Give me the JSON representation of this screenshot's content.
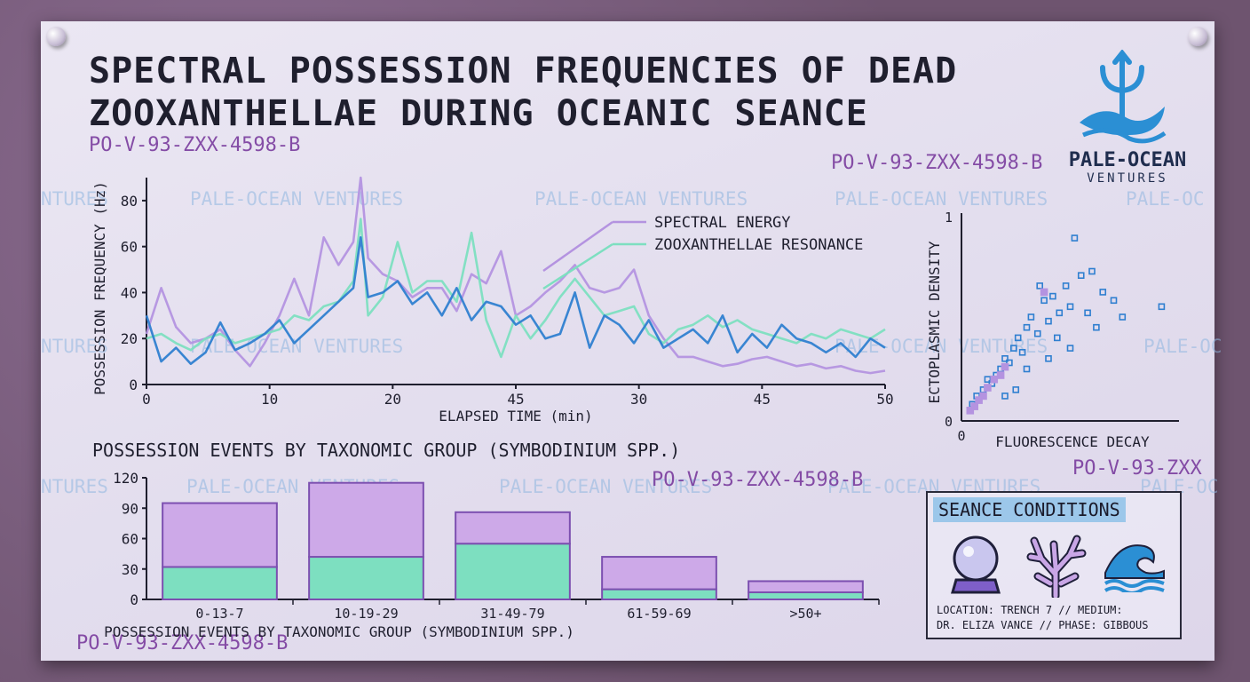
{
  "title_line1": "SPECTRAL POSSESSION FREQUENCIES OF DEAD",
  "title_line2": "ZOOXANTHELLAE DURING OCEANIC SEANCE",
  "specimen_code": "PO-V-93-ZXX-4598-B",
  "specimen_code_cut": "PO-V-93-ZXX",
  "watermark": "PALE-OCEAN VENTURES",
  "watermark_cut1": "NTURES",
  "watermark_cut2": "PALE-OC",
  "brand": {
    "name": "PALE-OCEAN",
    "sub": "VENTURES",
    "icon": "trident-wave-icon"
  },
  "colors": {
    "spectral": "#b493e0",
    "zoox": "#7ddfc0",
    "blue": "#2f7fd0",
    "accent": "#9cc7ea"
  },
  "chart_data": [
    {
      "type": "line",
      "xlabel": "ELAPSED TIME (min)",
      "ylabel": "POSSESSION FREQUENCY (Hz)",
      "x_tick_labels": [
        "0",
        "10",
        "20",
        "45",
        "30",
        "45",
        "50"
      ],
      "yticks": [
        0,
        20,
        40,
        60,
        80
      ],
      "ylim": [
        0,
        90
      ],
      "xlim": [
        0,
        50
      ],
      "grid": false,
      "legend": "top-center",
      "series": [
        {
          "name": "SPECTRAL ENERGY",
          "color": "#b493e0",
          "x": [
            0,
            1,
            2,
            3,
            4,
            5,
            6,
            7,
            8,
            9,
            10,
            11,
            12,
            13,
            14,
            14.5,
            15,
            16,
            17,
            18,
            19,
            20,
            21,
            22,
            23,
            24,
            25,
            26,
            27,
            28,
            29,
            30,
            31,
            32,
            33,
            34,
            35,
            36,
            37,
            38,
            39,
            40,
            41,
            42,
            43,
            44,
            45,
            46,
            47,
            48,
            49,
            50
          ],
          "values": [
            22,
            42,
            25,
            18,
            20,
            24,
            15,
            8,
            18,
            30,
            46,
            30,
            64,
            52,
            62,
            90,
            55,
            48,
            45,
            38,
            42,
            42,
            32,
            48,
            44,
            58,
            30,
            34,
            40,
            45,
            52,
            42,
            40,
            42,
            50,
            30,
            20,
            12,
            12,
            10,
            8,
            9,
            11,
            12,
            10,
            8,
            9,
            7,
            8,
            6,
            5,
            6
          ]
        },
        {
          "name": "ZOOXANTHELLAE RESONANCE",
          "color": "#7ddfc0",
          "x": [
            0,
            1,
            2,
            3,
            4,
            5,
            6,
            7,
            8,
            9,
            10,
            11,
            12,
            13,
            14,
            14.5,
            15,
            16,
            17,
            18,
            19,
            20,
            21,
            22,
            23,
            24,
            25,
            26,
            27,
            28,
            29,
            30,
            31,
            32,
            33,
            34,
            35,
            36,
            37,
            38,
            39,
            40,
            41,
            42,
            43,
            44,
            45,
            46,
            47,
            48,
            49,
            50
          ],
          "values": [
            20,
            22,
            18,
            15,
            20,
            22,
            18,
            20,
            22,
            24,
            30,
            28,
            34,
            36,
            45,
            72,
            30,
            38,
            62,
            40,
            45,
            45,
            36,
            66,
            28,
            12,
            30,
            20,
            28,
            38,
            46,
            38,
            30,
            32,
            34,
            22,
            18,
            24,
            26,
            30,
            25,
            28,
            24,
            22,
            20,
            18,
            22,
            20,
            24,
            22,
            20,
            24
          ]
        },
        {
          "name": "",
          "color": "#2f7fd0",
          "x": [
            0,
            1,
            2,
            3,
            4,
            5,
            6,
            7,
            8,
            9,
            10,
            11,
            12,
            13,
            14,
            14.5,
            15,
            16,
            17,
            18,
            19,
            20,
            21,
            22,
            23,
            24,
            25,
            26,
            27,
            28,
            29,
            30,
            31,
            32,
            33,
            34,
            35,
            36,
            37,
            38,
            39,
            40,
            41,
            42,
            43,
            44,
            45,
            46,
            47,
            48,
            49,
            50
          ],
          "values": [
            30,
            10,
            16,
            9,
            14,
            27,
            15,
            18,
            22,
            28,
            18,
            24,
            30,
            36,
            42,
            64,
            38,
            40,
            45,
            35,
            40,
            30,
            42,
            28,
            36,
            34,
            26,
            30,
            20,
            22,
            40,
            16,
            30,
            26,
            18,
            28,
            16,
            20,
            24,
            18,
            30,
            14,
            22,
            16,
            26,
            20,
            18,
            14,
            18,
            12,
            20,
            16
          ]
        }
      ]
    },
    {
      "type": "scatter",
      "xlabel": "FLUORESCENCE DECAY",
      "ylabel": "ECTOPLASMIC DENSITY",
      "x_tick_labels": [
        "0"
      ],
      "y_tick_labels": [
        "0",
        "1"
      ],
      "xlim": [
        0,
        1
      ],
      "ylim": [
        0,
        1
      ],
      "series": [
        {
          "name": "",
          "color": "#2f7fd0",
          "points": [
            [
              0.05,
              0.08
            ],
            [
              0.07,
              0.12
            ],
            [
              0.1,
              0.15
            ],
            [
              0.12,
              0.2
            ],
            [
              0.14,
              0.18
            ],
            [
              0.16,
              0.22
            ],
            [
              0.18,
              0.25
            ],
            [
              0.2,
              0.3
            ],
            [
              0.22,
              0.28
            ],
            [
              0.24,
              0.35
            ],
            [
              0.26,
              0.4
            ],
            [
              0.28,
              0.33
            ],
            [
              0.3,
              0.45
            ],
            [
              0.32,
              0.5
            ],
            [
              0.35,
              0.42
            ],
            [
              0.38,
              0.58
            ],
            [
              0.4,
              0.48
            ],
            [
              0.42,
              0.6
            ],
            [
              0.45,
              0.52
            ],
            [
              0.48,
              0.65
            ],
            [
              0.5,
              0.55
            ],
            [
              0.52,
              0.88
            ],
            [
              0.55,
              0.7
            ],
            [
              0.58,
              0.52
            ],
            [
              0.6,
              0.72
            ],
            [
              0.62,
              0.45
            ],
            [
              0.65,
              0.62
            ],
            [
              0.7,
              0.58
            ],
            [
              0.74,
              0.5
            ],
            [
              0.92,
              0.55
            ],
            [
              0.36,
              0.65
            ],
            [
              0.44,
              0.4
            ],
            [
              0.5,
              0.35
            ],
            [
              0.4,
              0.3
            ],
            [
              0.3,
              0.25
            ],
            [
              0.25,
              0.15
            ],
            [
              0.2,
              0.12
            ]
          ]
        },
        {
          "name": "",
          "color": "#b493e0",
          "points": [
            [
              0.04,
              0.05
            ],
            [
              0.06,
              0.07
            ],
            [
              0.08,
              0.1
            ],
            [
              0.1,
              0.12
            ],
            [
              0.12,
              0.16
            ],
            [
              0.15,
              0.2
            ],
            [
              0.18,
              0.22
            ],
            [
              0.2,
              0.26
            ],
            [
              0.38,
              0.62
            ]
          ]
        }
      ]
    },
    {
      "type": "bar",
      "title": "POSSESSION EVENTS BY TAXONOMIC GROUP (SYMBODINIUM SPP.)",
      "xlabel": "POSSESSION EVENTS BY TAXONOMIC GROUP (SYMBODINIUM SPP.)",
      "categories": [
        "0-13-7",
        "10-19-29",
        "31-49-79",
        "61-59-69",
        ">50+"
      ],
      "yticks": [
        0,
        30,
        60,
        90,
        120
      ],
      "ylim": [
        0,
        120
      ],
      "stacked": true,
      "series": [
        {
          "name": "",
          "color": "#7ddfc0",
          "values": [
            32,
            42,
            55,
            10,
            7
          ]
        },
        {
          "name": "",
          "color": "#cda9e8",
          "values": [
            63,
            73,
            31,
            32,
            11
          ]
        }
      ]
    }
  ],
  "seance_conditions": {
    "title": "SEANCE CONDITIONS",
    "icons": [
      "crystal-ball-icon",
      "coral-icon",
      "wave-icon"
    ],
    "line1": "LOCATION: TRENCH 7 // MEDIUM:",
    "line2": "DR. ELIZA VANCE // PHASE: GIBBOUS"
  }
}
